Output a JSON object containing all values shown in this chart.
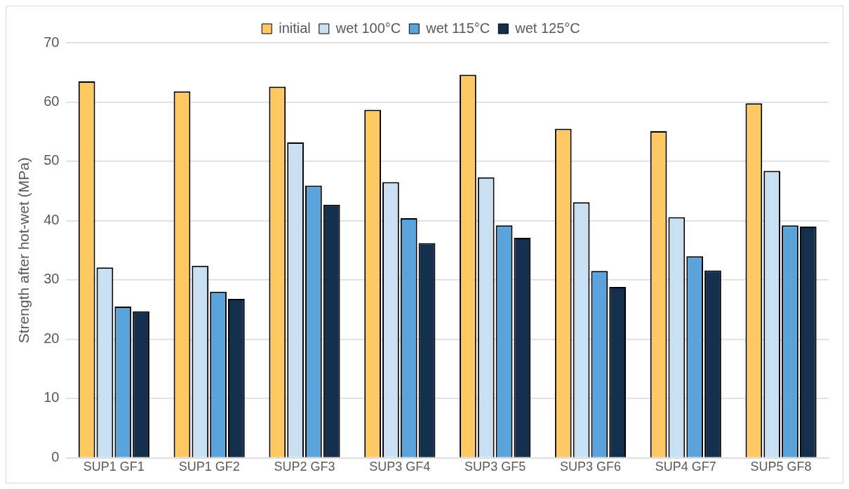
{
  "chart_data": {
    "type": "bar",
    "ylabel": "Strength after hot-wet (MPa)",
    "categories": [
      "SUP1 GF1",
      "SUP1 GF2",
      "SUP2 GF3",
      "SUP3 GF4",
      "SUP3 GF5",
      "SUP3 GF6",
      "SUP4 GF7",
      "SUP5 GF8"
    ],
    "series": [
      {
        "name": "initial",
        "color": "#fec863",
        "values": [
          63.5,
          61.8,
          62.6,
          58.7,
          64.6,
          55.5,
          55.1,
          59.8
        ]
      },
      {
        "name": "wet 100°C",
        "color": "#c9dff2",
        "values": [
          32.1,
          32.4,
          53.2,
          46.5,
          47.3,
          43.1,
          40.6,
          48.4
        ]
      },
      {
        "name": "wet 115°C",
        "color": "#5ba3db",
        "values": [
          25.5,
          28.0,
          45.9,
          40.4,
          39.2,
          31.5,
          34.0,
          39.2
        ]
      },
      {
        "name": "wet 125°C",
        "color": "#132f4b",
        "values": [
          24.7,
          26.8,
          42.7,
          36.2,
          37.1,
          28.8,
          31.6,
          39.0
        ]
      }
    ],
    "ylim": [
      0,
      70
    ],
    "yticks": [
      0,
      10,
      20,
      30,
      40,
      50,
      60,
      70
    ],
    "grid": "y",
    "legend": "top"
  }
}
